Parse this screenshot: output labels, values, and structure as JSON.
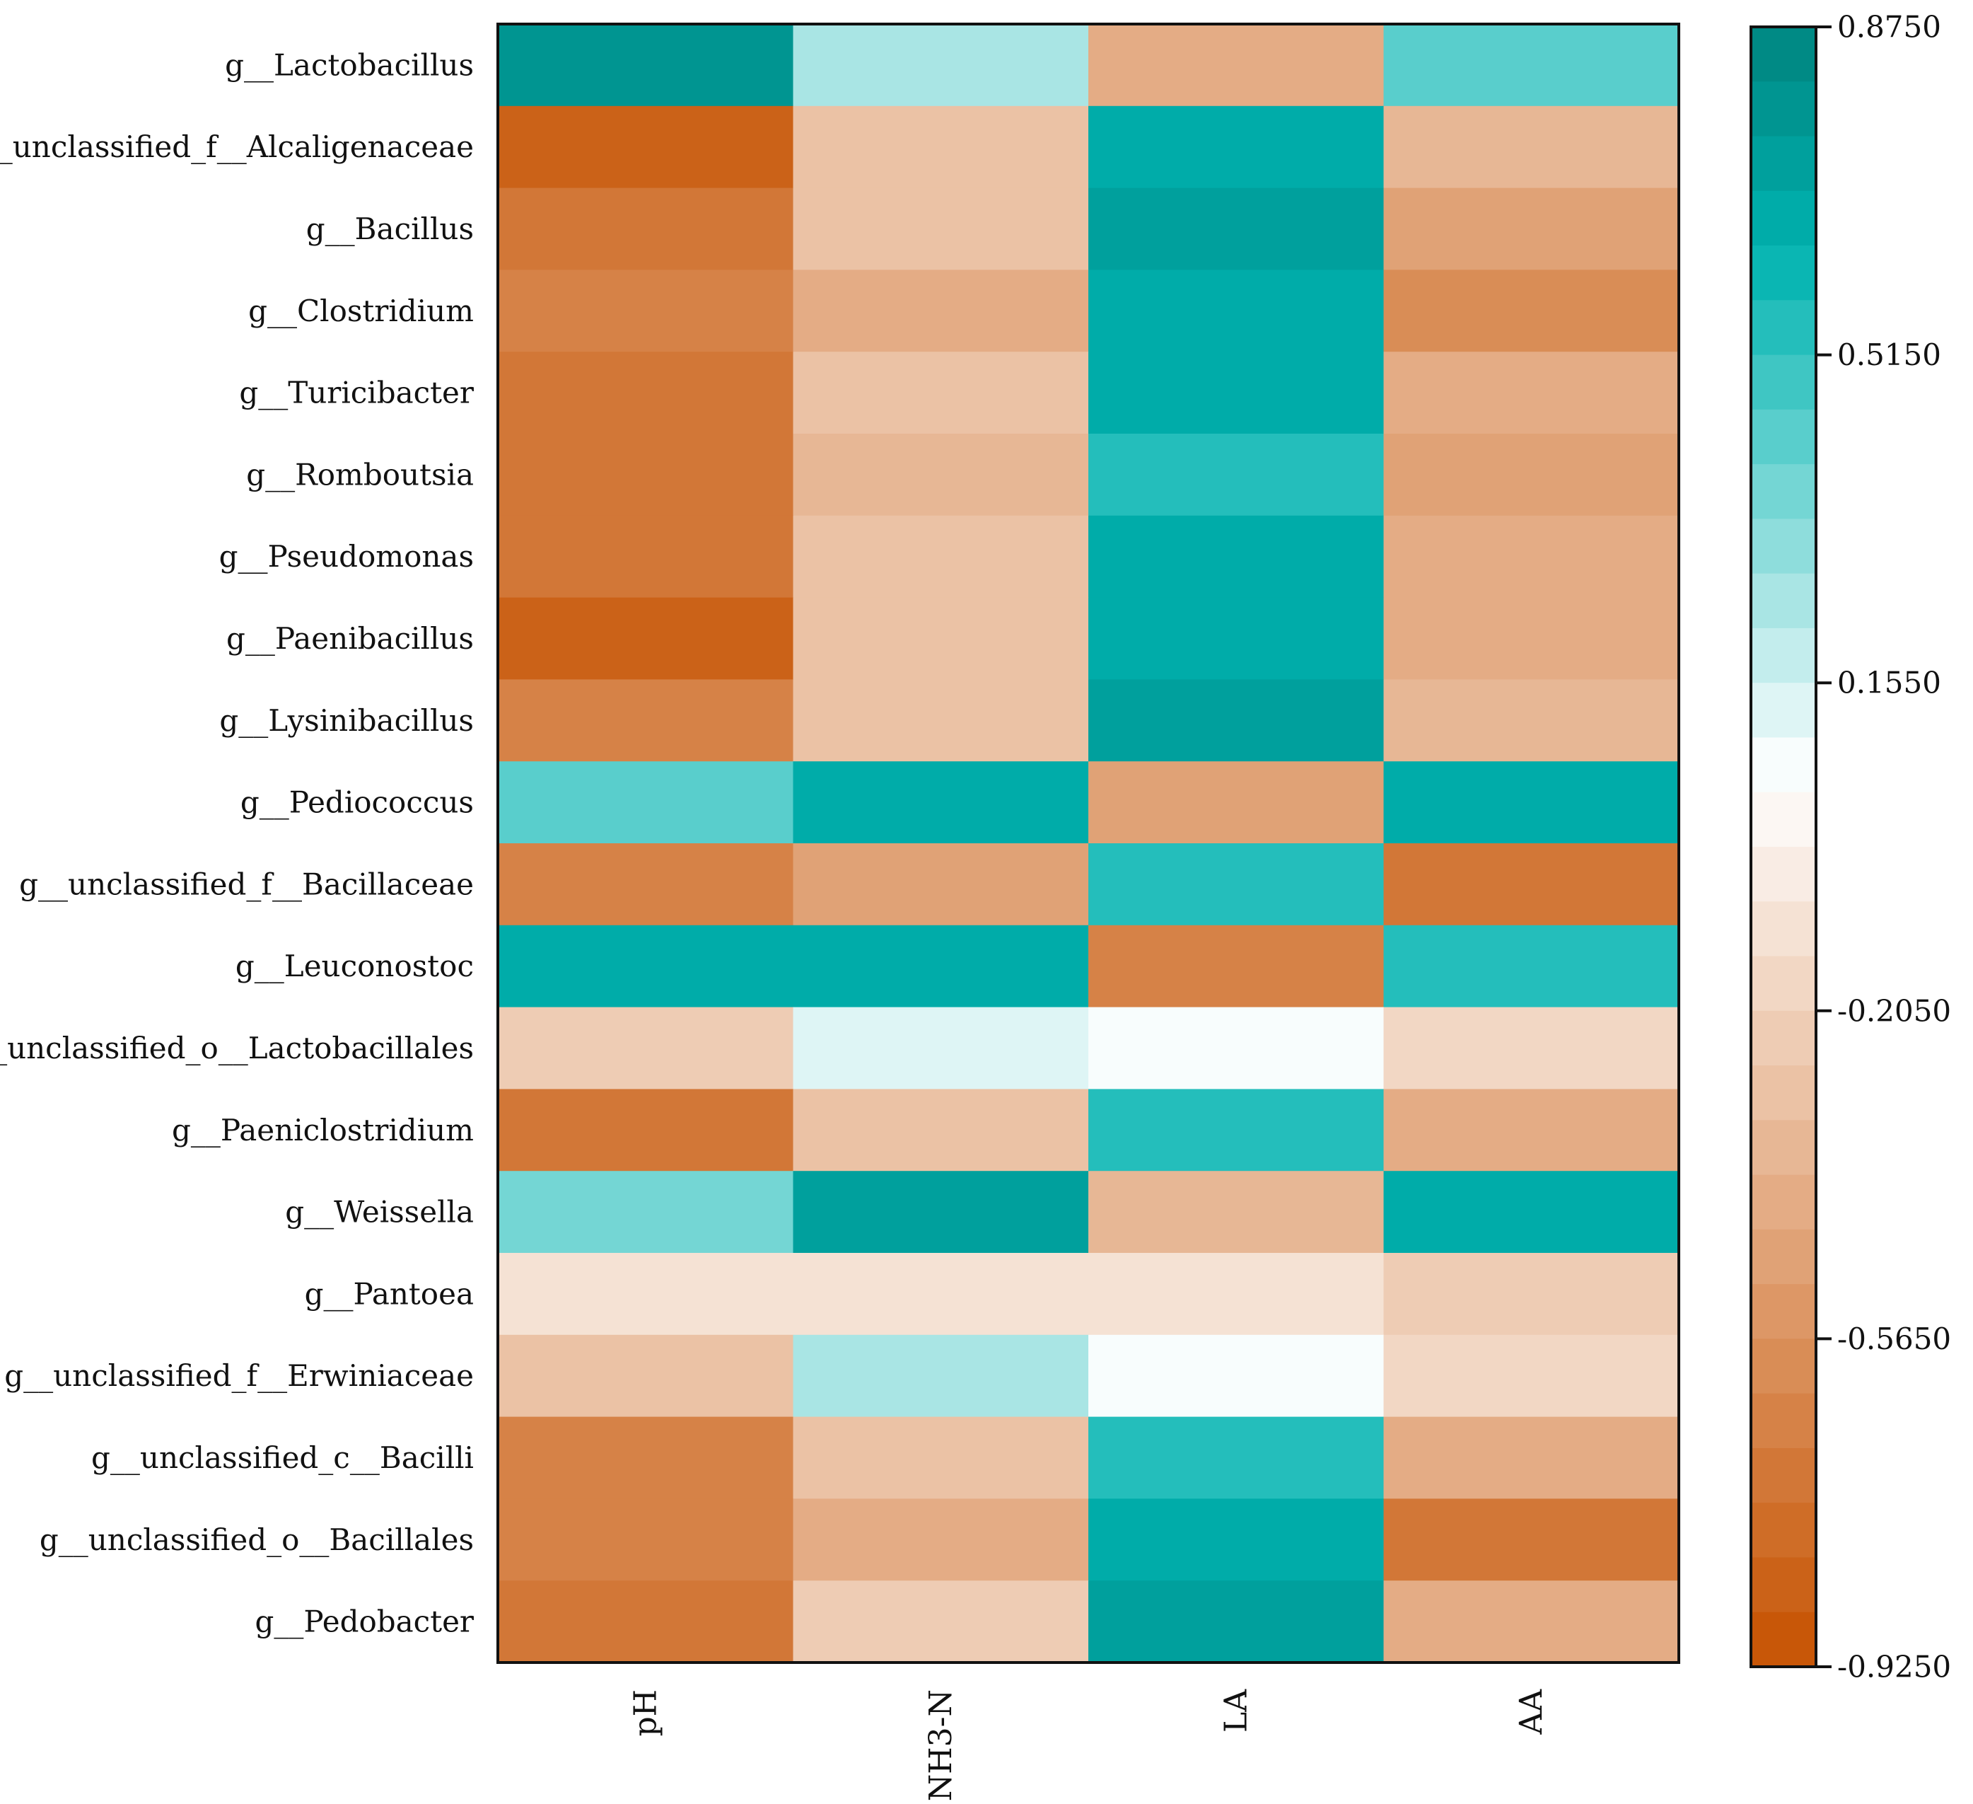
{
  "chart_data": {
    "type": "heatmap",
    "rows": [
      "g__Lactobacillus",
      "g__unclassified_f__Alcaligenaceae",
      "g__Bacillus",
      "g__Clostridium",
      "g__Turicibacter",
      "g__Romboutsia",
      "g__Pseudomonas",
      "g__Paenibacillus",
      "g__Lysinibacillus",
      "g__Pediococcus",
      "g__unclassified_f__Bacillaceae",
      "g__Leuconostoc",
      "g__unclassified_o__Lactobacillales",
      "g__Paeniclostridium",
      "g__Weissella",
      "g__Pantoea",
      "g__unclassified_f__Erwiniaceae",
      "g__unclassified_c__Bacilli",
      "g__unclassified_o__Bacillales",
      "g__Pedobacter"
    ],
    "columns": [
      "pH",
      "NH3-N",
      "LA",
      "AA"
    ],
    "values": [
      [
        0.8,
        0.22,
        -0.4,
        0.45
      ],
      [
        -0.83,
        -0.27,
        0.65,
        -0.35
      ],
      [
        -0.74,
        -0.32,
        0.72,
        -0.45
      ],
      [
        -0.65,
        -0.42,
        0.65,
        -0.58
      ],
      [
        -0.74,
        -0.32,
        0.65,
        -0.4
      ],
      [
        -0.74,
        -0.35,
        0.55,
        -0.5
      ],
      [
        -0.74,
        -0.27,
        0.65,
        -0.4
      ],
      [
        -0.83,
        -0.32,
        0.65,
        -0.4
      ],
      [
        -0.65,
        -0.27,
        0.72,
        -0.35
      ],
      [
        0.45,
        0.65,
        -0.45,
        0.65
      ],
      [
        -0.65,
        -0.45,
        0.55,
        -0.74
      ],
      [
        0.65,
        0.65,
        -0.65,
        0.55
      ],
      [
        -0.24,
        0.12,
        0.05,
        -0.2
      ],
      [
        -0.74,
        -0.3,
        0.55,
        -0.42
      ],
      [
        0.35,
        0.72,
        -0.35,
        0.65
      ],
      [
        -0.12,
        -0.12,
        -0.12,
        -0.22
      ],
      [
        -0.27,
        0.22,
        0.05,
        -0.17
      ],
      [
        -0.65,
        -0.27,
        0.55,
        -0.42
      ],
      [
        -0.65,
        -0.4,
        0.65,
        -0.74
      ],
      [
        -0.74,
        -0.24,
        0.72,
        -0.4
      ]
    ],
    "colorbar": {
      "min": -0.925,
      "max": 0.875,
      "ticks": [
        {
          "value": 0.875,
          "label": "0.8750"
        },
        {
          "value": 0.515,
          "label": "0.5150"
        },
        {
          "value": 0.155,
          "label": "0.1550"
        },
        {
          "value": -0.205,
          "label": "-0.2050"
        },
        {
          "value": -0.565,
          "label": "-0.5650"
        },
        {
          "value": -0.925,
          "label": "-0.9250"
        }
      ],
      "steps": 30,
      "colors": {
        "low": "#c65200",
        "mid": "#ffffff",
        "high": "#00847f",
        "teal": "#00b3b0"
      }
    }
  }
}
